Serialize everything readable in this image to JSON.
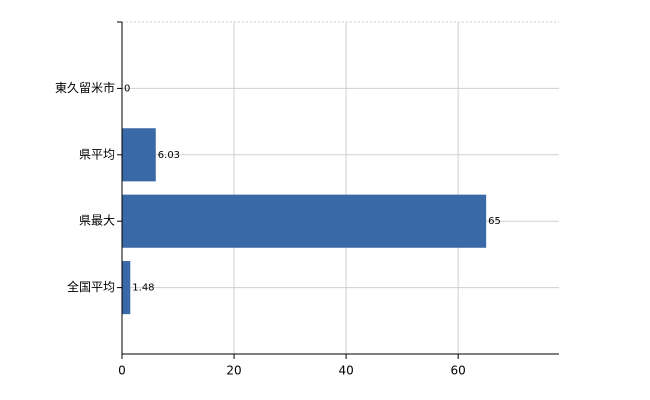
{
  "chart_data": {
    "type": "hbar",
    "categories": [
      "東久留米市",
      "県平均",
      "県最大",
      "全国平均"
    ],
    "values": [
      0,
      6.03,
      65,
      1.48
    ],
    "color": "#3a69a8",
    "xlim": [
      0,
      78
    ],
    "xticks": [
      0,
      20,
      40,
      60
    ],
    "grid": true
  }
}
